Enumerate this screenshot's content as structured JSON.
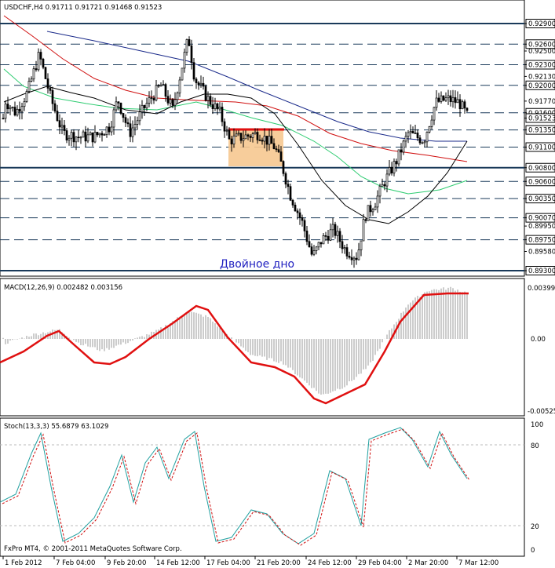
{
  "app": {
    "symbol_header": "USDCHF,H4  0.91711 0.91721 0.91468 0.91523",
    "footer": "FxPro MT4, © 2001-2011 MetaQuotes Software Corp."
  },
  "colors": {
    "background": "#ffffff",
    "frame": "#000000",
    "ma_fast": "#000000",
    "ma_medium": "#2ecc71",
    "ma_slow": "#d01010",
    "ma_slowest": "#1a2a8a",
    "macd_signal": "#e01010",
    "stoch_main": "#20a0a0",
    "stoch_signal": "#d01010",
    "pattern_box": "#f6c890",
    "annotation_text": "#2020c0"
  },
  "main_panel": {
    "annotation": "Двойное дно",
    "pattern_box_range": {
      "from_date": "17 Feb 2012",
      "to_date": "21 Feb 2012",
      "low": 0.908,
      "high": 0.9135
    },
    "price_range": [
      0.8925,
      0.93
    ],
    "price_axis_labels": [
      "0.92900",
      "0.92600",
      "0.92500",
      "0.92300",
      "0.92130",
      "0.92000",
      "0.91770",
      "0.91600",
      "0.91523",
      "0.91350",
      "0.91100",
      "0.90800",
      "0.90600",
      "0.90350",
      "0.90070",
      "0.89950",
      "0.89750",
      "0.89580",
      "0.89300"
    ],
    "horizontal_levels": [
      {
        "value": "0.92900",
        "style": "solid"
      },
      {
        "value": "0.92600",
        "style": "dashed"
      },
      {
        "value": "0.92300",
        "style": "dashed"
      },
      {
        "value": "0.92000",
        "style": "dashed"
      },
      {
        "value": "0.91600",
        "style": "dashed"
      },
      {
        "value": "0.91350",
        "style": "dashed"
      },
      {
        "value": "0.91100",
        "style": "dashed"
      },
      {
        "value": "0.90800",
        "style": "solid"
      },
      {
        "value": "0.90600",
        "style": "dashed"
      },
      {
        "value": "0.90350",
        "style": "dashed"
      },
      {
        "value": "0.90070",
        "style": "dashed"
      },
      {
        "value": "0.89750",
        "style": "dashed"
      },
      {
        "value": "0.89300",
        "style": "solid"
      }
    ],
    "current_price_tag": "0.91523",
    "extra_tag": "0.90680"
  },
  "macd_panel": {
    "header": "MACD(12,26,9) 0.002482 0.003156",
    "axis_labels": [
      "0.00399",
      "0.00",
      "-0.00525"
    ],
    "range": [
      -0.00525,
      0.00399
    ]
  },
  "stoch_panel": {
    "header": "Stoch(13,3,3) 55.6879 63.1029",
    "axis_labels": [
      "100",
      "80",
      "20",
      "0"
    ]
  },
  "time_axis": {
    "labels": [
      "1 Feb 2012",
      "7 Feb 04:00",
      "9 Feb 20:00",
      "14 Feb 12:00",
      "17 Feb 04:00",
      "21 Feb 20:00",
      "24 Feb 12:00",
      "29 Feb 04:00",
      "2 Mar 20:00",
      "7 Mar 12:00"
    ]
  }
}
